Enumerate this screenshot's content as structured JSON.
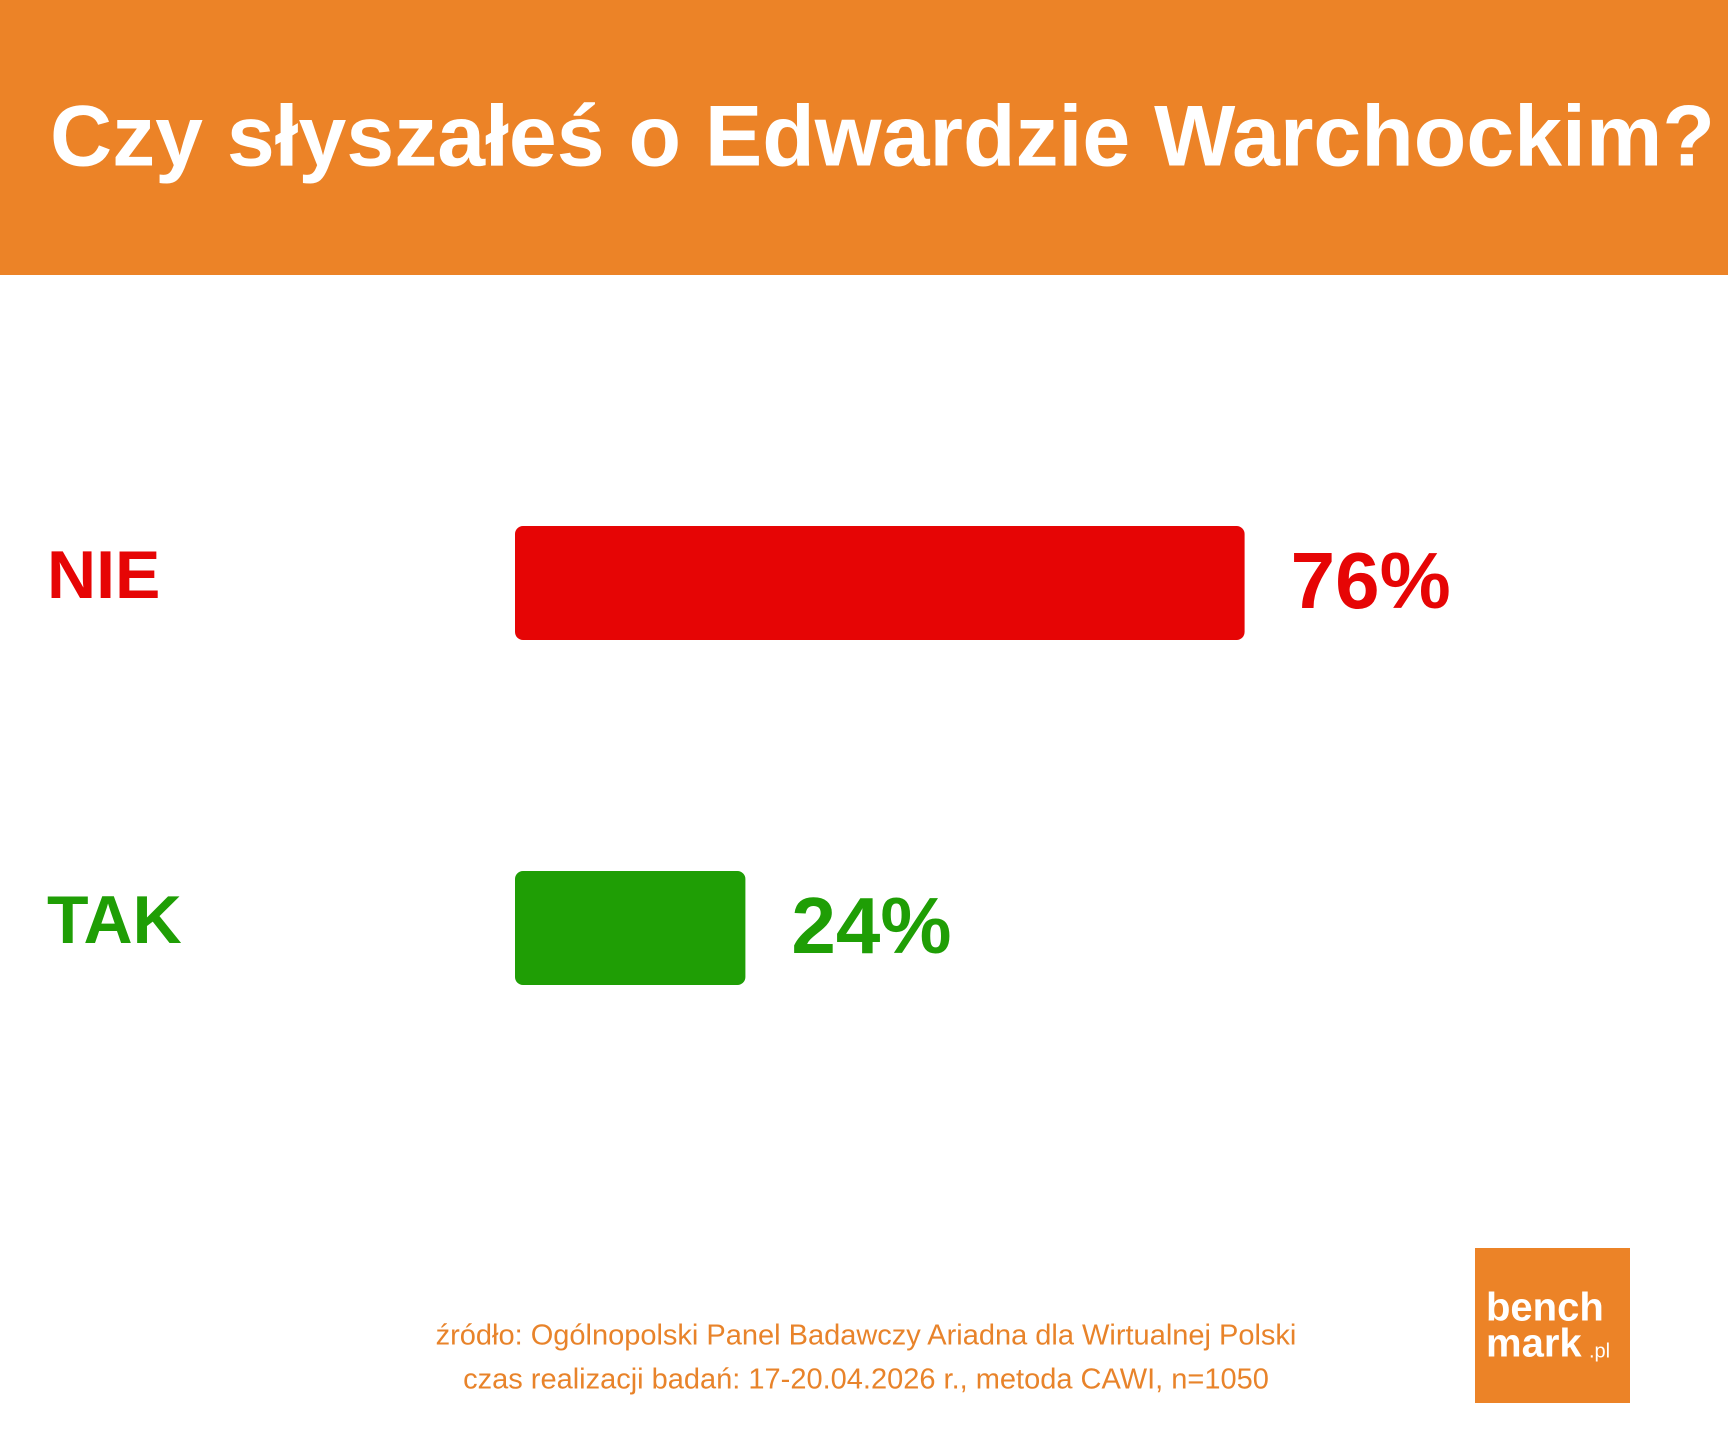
{
  "chart_data": {
    "type": "bar",
    "orientation": "horizontal",
    "title": "Czy słyszałeś o Edwardzie Warchockim?",
    "categories": [
      "NIE",
      "TAK"
    ],
    "values": [
      76,
      24
    ],
    "value_labels": [
      "76%",
      "24%"
    ],
    "colors": [
      "#e60505",
      "#1f9e05"
    ]
  },
  "footer": {
    "lines": [
      "źródło: Ogólnopolski Panel Badawczy Ariadna dla Wirtualnej Polski",
      "czas realizacji badań: 17-20.04.2026 r., metoda CAWI, n=1050"
    ]
  },
  "logo": {
    "line1": "bench",
    "line2": "mark",
    "suffix": ".pl"
  }
}
